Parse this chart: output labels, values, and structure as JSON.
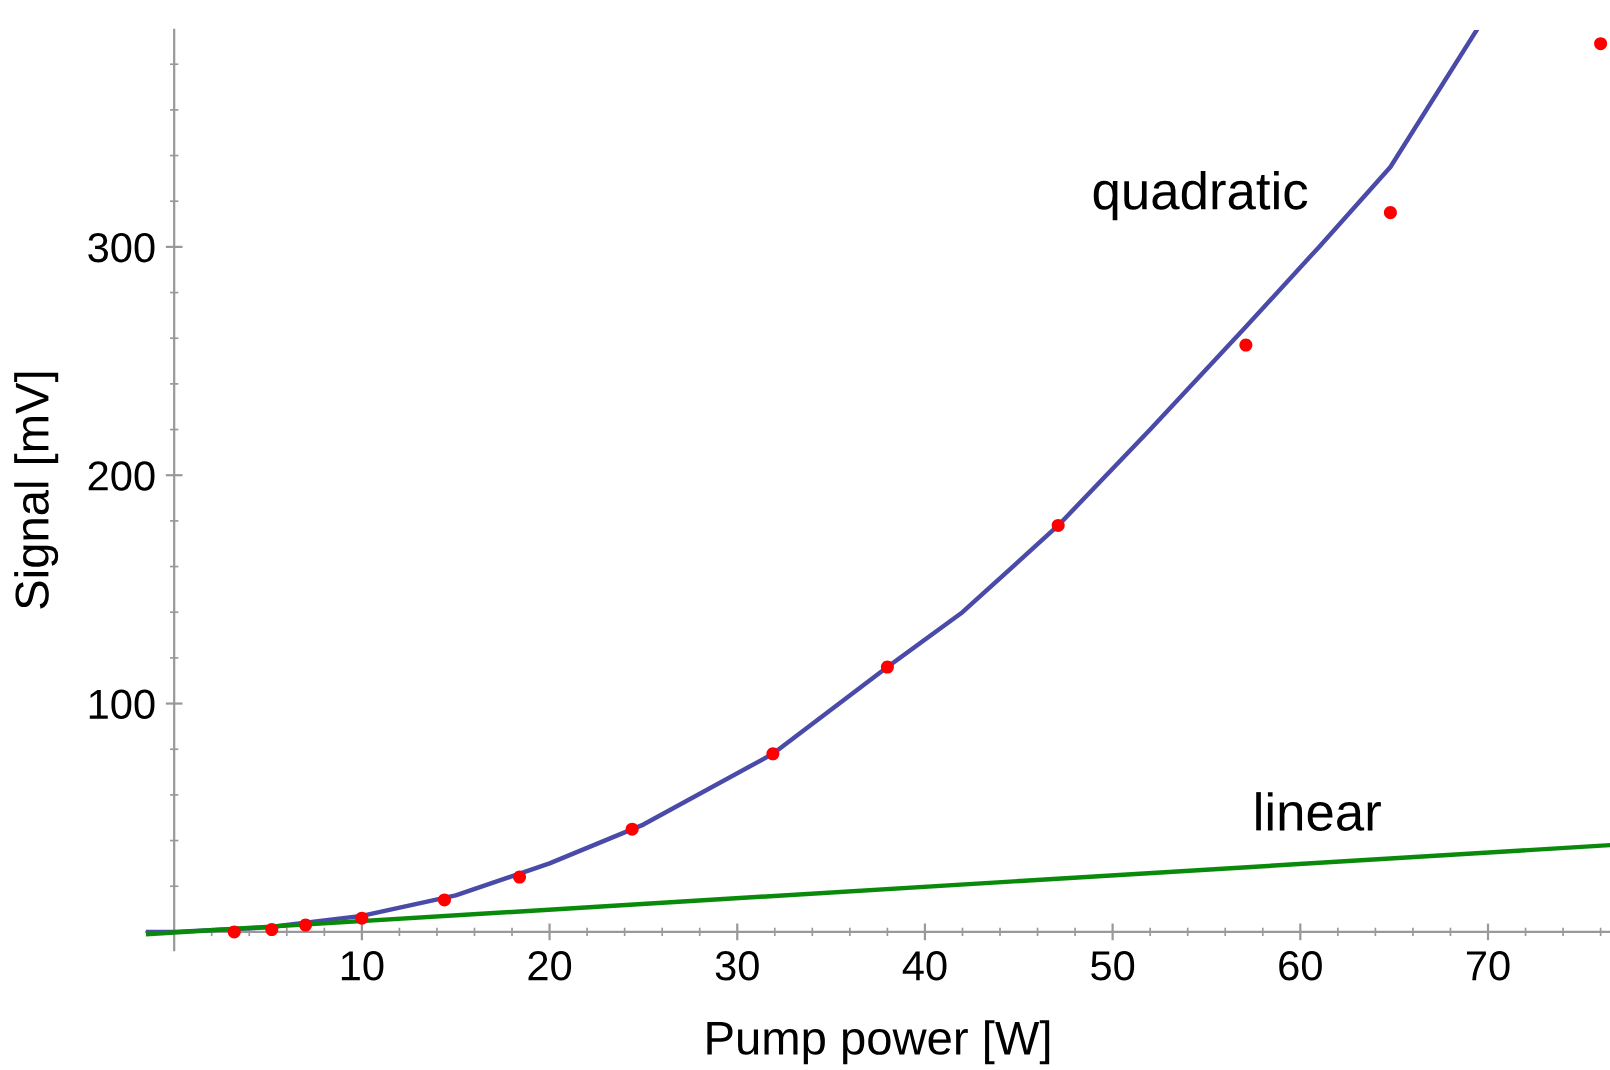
{
  "chart_data": {
    "type": "scatter",
    "xlabel": "Pump power [W]",
    "ylabel": "Signal [mV]",
    "series": [
      {
        "color": "#ff0000",
        "marker": "circle",
        "x": [
          3.2,
          5.2,
          7.0,
          10.0,
          14.4,
          18.4,
          24.4,
          31.9,
          38.0,
          47.1,
          57.1,
          64.8,
          76.0
        ],
        "values": [
          0,
          1,
          3,
          6,
          14,
          24,
          45,
          78,
          116,
          178,
          257,
          315,
          389
        ]
      },
      {
        "type": "line",
        "name": "quadratic",
        "color": "#4a4aa8",
        "marker": "none",
        "x": [
          -1.5,
          0,
          5,
          10,
          15,
          20,
          25,
          31.9,
          38,
          42,
          47.1,
          52,
          57.1,
          61,
          64.8,
          69.4
        ],
        "values": [
          0,
          0,
          2,
          7,
          16,
          30,
          47,
          78,
          116,
          140,
          178,
          220,
          265,
          300,
          335,
          395
        ]
      },
      {
        "type": "line",
        "name": "linear",
        "color": "#0a8a0a",
        "marker": "none",
        "x": [
          -1.5,
          76.5
        ],
        "values": [
          -1,
          38
        ]
      }
    ],
    "xlim": [
      -1.5,
      76.5
    ],
    "ylim": [
      -8,
      395
    ],
    "xticks": [
      10,
      20,
      30,
      40,
      50,
      60,
      70,
      {
        "value": 2,
        "label": null
      },
      {
        "value": 4,
        "label": null
      },
      {
        "value": 6,
        "label": null
      },
      {
        "value": 8,
        "label": null
      },
      {
        "value": 12,
        "label": null
      },
      {
        "value": 14,
        "label": null
      },
      {
        "value": 16,
        "label": null
      },
      {
        "value": 18,
        "label": null
      },
      {
        "value": 22,
        "label": null
      },
      {
        "value": 24,
        "label": null
      },
      {
        "value": 26,
        "label": null
      },
      {
        "value": 28,
        "label": null
      },
      {
        "value": 32,
        "label": null
      },
      {
        "value": 34,
        "label": null
      },
      {
        "value": 36,
        "label": null
      },
      {
        "value": 38,
        "label": null
      },
      {
        "value": 42,
        "label": null
      },
      {
        "value": 44,
        "label": null
      },
      {
        "value": 46,
        "label": null
      },
      {
        "value": 48,
        "label": null
      },
      {
        "value": 52,
        "label": null
      },
      {
        "value": 54,
        "label": null
      },
      {
        "value": 56,
        "label": null
      },
      {
        "value": 58,
        "label": null
      },
      {
        "value": 62,
        "label": null
      },
      {
        "value": 64,
        "label": null
      },
      {
        "value": 66,
        "label": null
      },
      {
        "value": 68,
        "label": null
      },
      {
        "value": 72,
        "label": null
      },
      {
        "value": 74,
        "label": null
      },
      {
        "value": 76,
        "label": null
      }
    ],
    "yticks": [
      100,
      200,
      300,
      {
        "value": 20,
        "label": null
      },
      {
        "value": 40,
        "label": null
      },
      {
        "value": 60,
        "label": null
      },
      {
        "value": 80,
        "label": null
      },
      {
        "value": 120,
        "label": null
      },
      {
        "value": 140,
        "label": null
      },
      {
        "value": 160,
        "label": null
      },
      {
        "value": 180,
        "label": null
      },
      {
        "value": 220,
        "label": null
      },
      {
        "value": 240,
        "label": null
      },
      {
        "value": 260,
        "label": null
      },
      {
        "value": 280,
        "label": null
      },
      {
        "value": 320,
        "label": null
      },
      {
        "value": 340,
        "label": null
      },
      {
        "value": 360,
        "label": null
      },
      {
        "value": 380,
        "label": null
      }
    ],
    "grid": false,
    "legend": false
  }
}
